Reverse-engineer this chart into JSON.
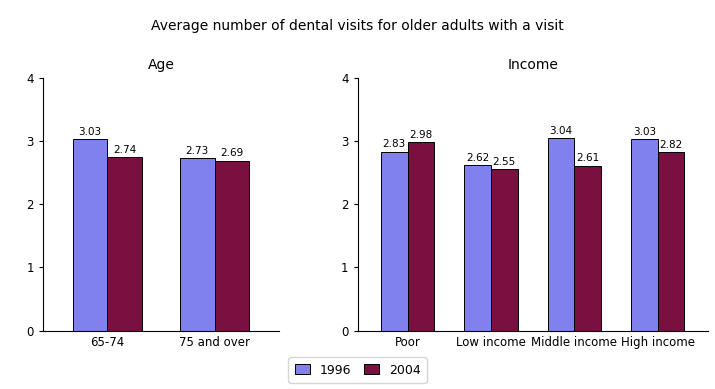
{
  "title": "Average number of dental visits for older adults with a visit",
  "title_fontsize": 10,
  "age_subtitle": "Age",
  "income_subtitle": "Income",
  "age_categories": [
    "65-74",
    "75 and over"
  ],
  "age_1996": [
    3.03,
    2.73
  ],
  "age_2004": [
    2.74,
    2.69
  ],
  "income_categories": [
    "Poor",
    "Low income",
    "Middle income",
    "High income"
  ],
  "income_1996": [
    2.83,
    2.62,
    3.04,
    3.03
  ],
  "income_2004": [
    2.98,
    2.55,
    2.61,
    2.82
  ],
  "color_1996": "#8080ee",
  "color_2004": "#7a1040",
  "ylim": [
    0,
    4
  ],
  "yticks": [
    0,
    1,
    2,
    3,
    4
  ],
  "bar_width": 0.32,
  "legend_labels": [
    "1996",
    "2004"
  ],
  "value_fontsize": 7.5,
  "subtitle_fontsize": 10,
  "tick_fontsize": 8.5
}
